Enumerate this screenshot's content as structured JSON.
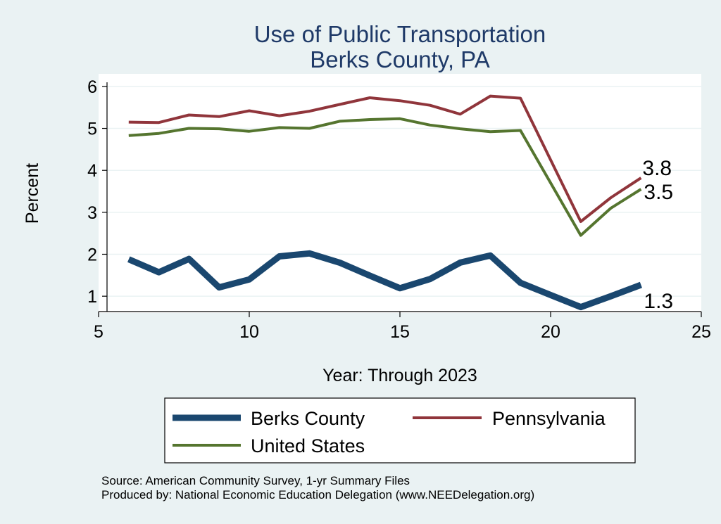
{
  "chart_data": {
    "type": "line",
    "title": "Use of Public Transportation",
    "subtitle": "Berks County, PA",
    "xlabel": "Year: Through 2023",
    "ylabel": "Percent",
    "xlim": [
      5,
      25
    ],
    "ylim": [
      0.6,
      6.3
    ],
    "xticks": [
      5,
      10,
      15,
      20,
      25
    ],
    "yticks": [
      1,
      2,
      3,
      4,
      5,
      6
    ],
    "grid": true,
    "legend_position": "bottom",
    "series": [
      {
        "name": "Berks County",
        "color": "#1a476f",
        "x": [
          6,
          7,
          8,
          9,
          10,
          11,
          12,
          13,
          14,
          15,
          16,
          17,
          18,
          19,
          20,
          21,
          22,
          23
        ],
        "values": [
          1.88,
          1.57,
          1.89,
          1.21,
          1.4,
          1.95,
          2.02,
          1.8,
          1.49,
          1.19,
          1.41,
          1.8,
          1.97,
          1.32,
          1.03,
          0.74,
          1.0,
          1.27
        ],
        "end_label": "1.3"
      },
      {
        "name": "Pennsylvania",
        "color": "#90353b",
        "x": [
          6,
          7,
          8,
          9,
          10,
          11,
          12,
          13,
          14,
          15,
          16,
          17,
          18,
          19,
          21,
          22,
          23
        ],
        "values": [
          5.15,
          5.14,
          5.32,
          5.28,
          5.42,
          5.3,
          5.41,
          5.57,
          5.73,
          5.66,
          5.55,
          5.34,
          5.77,
          5.72,
          2.78,
          3.35,
          3.82
        ],
        "end_label": "3.8"
      },
      {
        "name": "United States",
        "color": "#55752f",
        "x": [
          6,
          7,
          8,
          9,
          10,
          11,
          12,
          13,
          14,
          15,
          16,
          17,
          18,
          19,
          21,
          22,
          23
        ],
        "values": [
          4.83,
          4.88,
          5.0,
          4.99,
          4.93,
          5.02,
          5.0,
          5.17,
          5.21,
          5.23,
          5.08,
          4.99,
          4.92,
          4.95,
          2.45,
          3.1,
          3.55
        ],
        "end_label": "3.5"
      }
    ],
    "source_lines": [
      "Source: American Community Survey, 1-yr Summary Files",
      "Produced by: National Economic Education Delegation (www.NEEDelegation.org)"
    ]
  }
}
